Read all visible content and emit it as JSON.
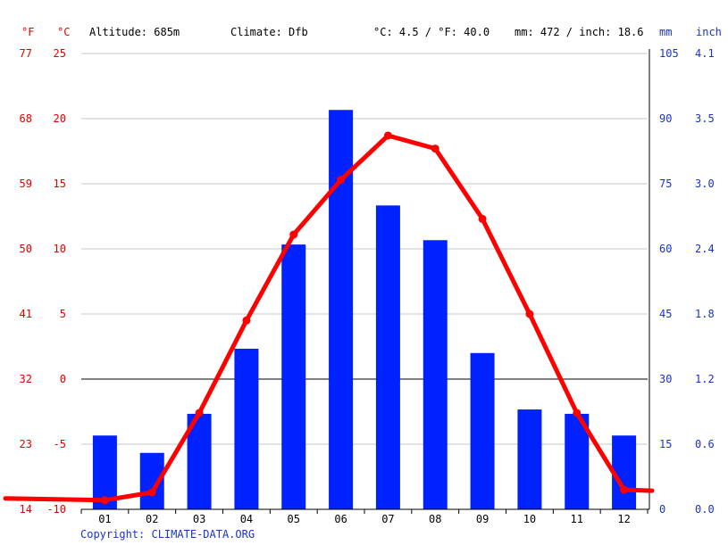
{
  "header": {
    "altitude": "Altitude: 685m",
    "climate": "Climate: Dfb",
    "avg_temp": "°C: 4.5 / °F: 40.0",
    "precip_total": "mm: 472 / inch: 18.6",
    "unit_f": "°F",
    "unit_c": "°C",
    "unit_mm": "mm",
    "unit_inch": "inch"
  },
  "copyright": "Copyright: CLIMATE-DATA.ORG",
  "colors": {
    "temperature": "#ff0000",
    "precipitation": "#0022ff",
    "axis_red": "#e60000",
    "axis_blue": "#1a33cc"
  },
  "chart_data": {
    "type": "bar",
    "categories": [
      "01",
      "02",
      "03",
      "04",
      "05",
      "06",
      "07",
      "08",
      "09",
      "10",
      "11",
      "12"
    ],
    "series": [
      {
        "type": "bar",
        "axis": "right_mm",
        "values": [
          17,
          13,
          22,
          37,
          61,
          92,
          70,
          62,
          36,
          23,
          22,
          17
        ]
      },
      {
        "type": "line",
        "axis": "left_c",
        "values": [
          -9.3,
          -8.7,
          -2.6,
          4.5,
          11.1,
          15.3,
          18.7,
          17.7,
          12.3,
          5.0,
          -2.6,
          -8.5
        ]
      }
    ],
    "left_axis_c": {
      "ylim": [
        -10,
        25
      ],
      "ticks": [
        "-10",
        "-5",
        "0",
        "5",
        "10",
        "15",
        "20",
        "25"
      ]
    },
    "left_axis_f": {
      "ticks": [
        "14",
        "23",
        "32",
        "41",
        "50",
        "59",
        "68",
        "77"
      ]
    },
    "right_axis_mm": {
      "ylim": [
        0,
        105
      ],
      "ticks": [
        "0",
        "15",
        "30",
        "45",
        "60",
        "75",
        "90",
        "105"
      ]
    },
    "right_axis_inch": {
      "ticks": [
        "0.0",
        "0.6",
        "1.2",
        "1.8",
        "2.4",
        "3.0",
        "3.5",
        "4.1"
      ]
    },
    "grid": true
  }
}
